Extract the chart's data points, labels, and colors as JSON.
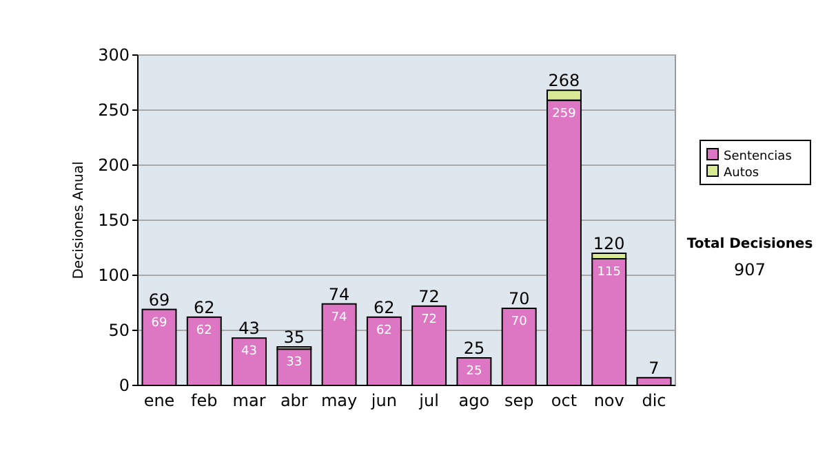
{
  "chart_data": {
    "type": "bar",
    "stacked": true,
    "ylabel": "Decisiones Anual",
    "categories": [
      "ene",
      "feb",
      "mar",
      "abr",
      "may",
      "jun",
      "jul",
      "ago",
      "sep",
      "oct",
      "nov",
      "dic"
    ],
    "series": [
      {
        "name": "Sentencias",
        "color": "#dd77c4",
        "values": [
          69,
          62,
          43,
          33,
          74,
          62,
          72,
          25,
          70,
          259,
          115,
          7
        ],
        "value_labels": [
          "69",
          "62",
          "43",
          "33",
          "74",
          "62",
          "72",
          "25",
          "70",
          "259",
          "115",
          null
        ]
      },
      {
        "name": "Autos",
        "color": "#d8ea94",
        "values": [
          0,
          0,
          0,
          2,
          0,
          0,
          0,
          0,
          0,
          9,
          5,
          0
        ]
      }
    ],
    "totals": [
      "69",
      "62",
      "43",
      "35",
      "74",
      "62",
      "72",
      "25",
      "70",
      "268",
      "120",
      "7"
    ],
    "ylim": [
      0,
      300
    ],
    "yticks": [
      0,
      50,
      100,
      150,
      200,
      250,
      300
    ],
    "grid": "y",
    "legend": "right",
    "annotations": [
      "Total Decisiones",
      "907"
    ]
  }
}
